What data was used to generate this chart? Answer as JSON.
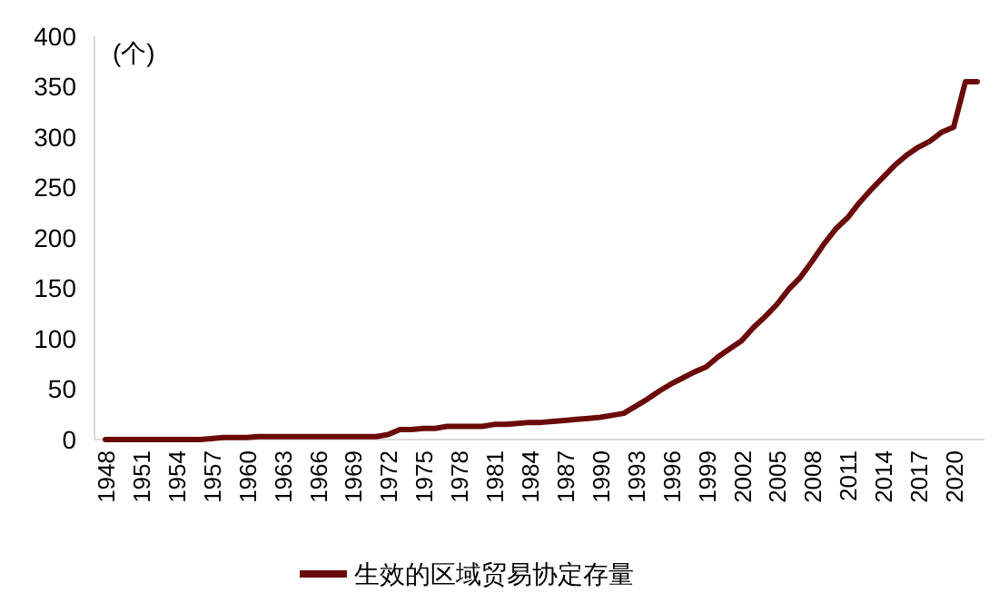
{
  "chart_data": {
    "type": "line",
    "ylabel": "(个)",
    "categories": [
      "1948",
      null,
      null,
      "1951",
      null,
      null,
      "1954",
      null,
      null,
      "1957",
      null,
      null,
      "1960",
      null,
      null,
      "1963",
      null,
      null,
      "1966",
      null,
      null,
      "1969",
      null,
      null,
      "1972",
      null,
      null,
      "1975",
      null,
      null,
      "1978",
      null,
      null,
      "1981",
      null,
      null,
      "1984",
      null,
      null,
      "1987",
      null,
      null,
      "1990",
      null,
      null,
      "1993",
      null,
      null,
      "1996",
      null,
      null,
      "1999",
      null,
      null,
      "2002",
      null,
      null,
      "2005",
      null,
      null,
      "2008",
      null,
      null,
      "2011",
      null,
      null,
      "2014",
      null,
      null,
      "2017",
      null,
      null,
      "2020",
      null,
      null
    ],
    "series": [
      {
        "name": "生效的区域贸易协定存量",
        "color": "#6b0a0a",
        "values": [
          0,
          0,
          0,
          0,
          0,
          0,
          0,
          0,
          0,
          1,
          2,
          2,
          2,
          3,
          3,
          3,
          3,
          3,
          3,
          3,
          3,
          3,
          3,
          3,
          5,
          10,
          10,
          11,
          11,
          13,
          13,
          13,
          13,
          15,
          15,
          16,
          17,
          17,
          18,
          19,
          20,
          21,
          22,
          24,
          26,
          33,
          40,
          48,
          55,
          61,
          67,
          72,
          82,
          90,
          98,
          111,
          122,
          134,
          149,
          161,
          177,
          194,
          209,
          220,
          235,
          248,
          260,
          272,
          282,
          290,
          296,
          305,
          310,
          355,
          355
        ]
      }
    ],
    "ylim": [
      0,
      400
    ],
    "yticks": [
      0,
      50,
      100,
      150,
      200,
      250,
      300,
      350,
      400
    ],
    "grid": false,
    "legend": "bottom",
    "marker": "none",
    "line_style": "solid"
  }
}
